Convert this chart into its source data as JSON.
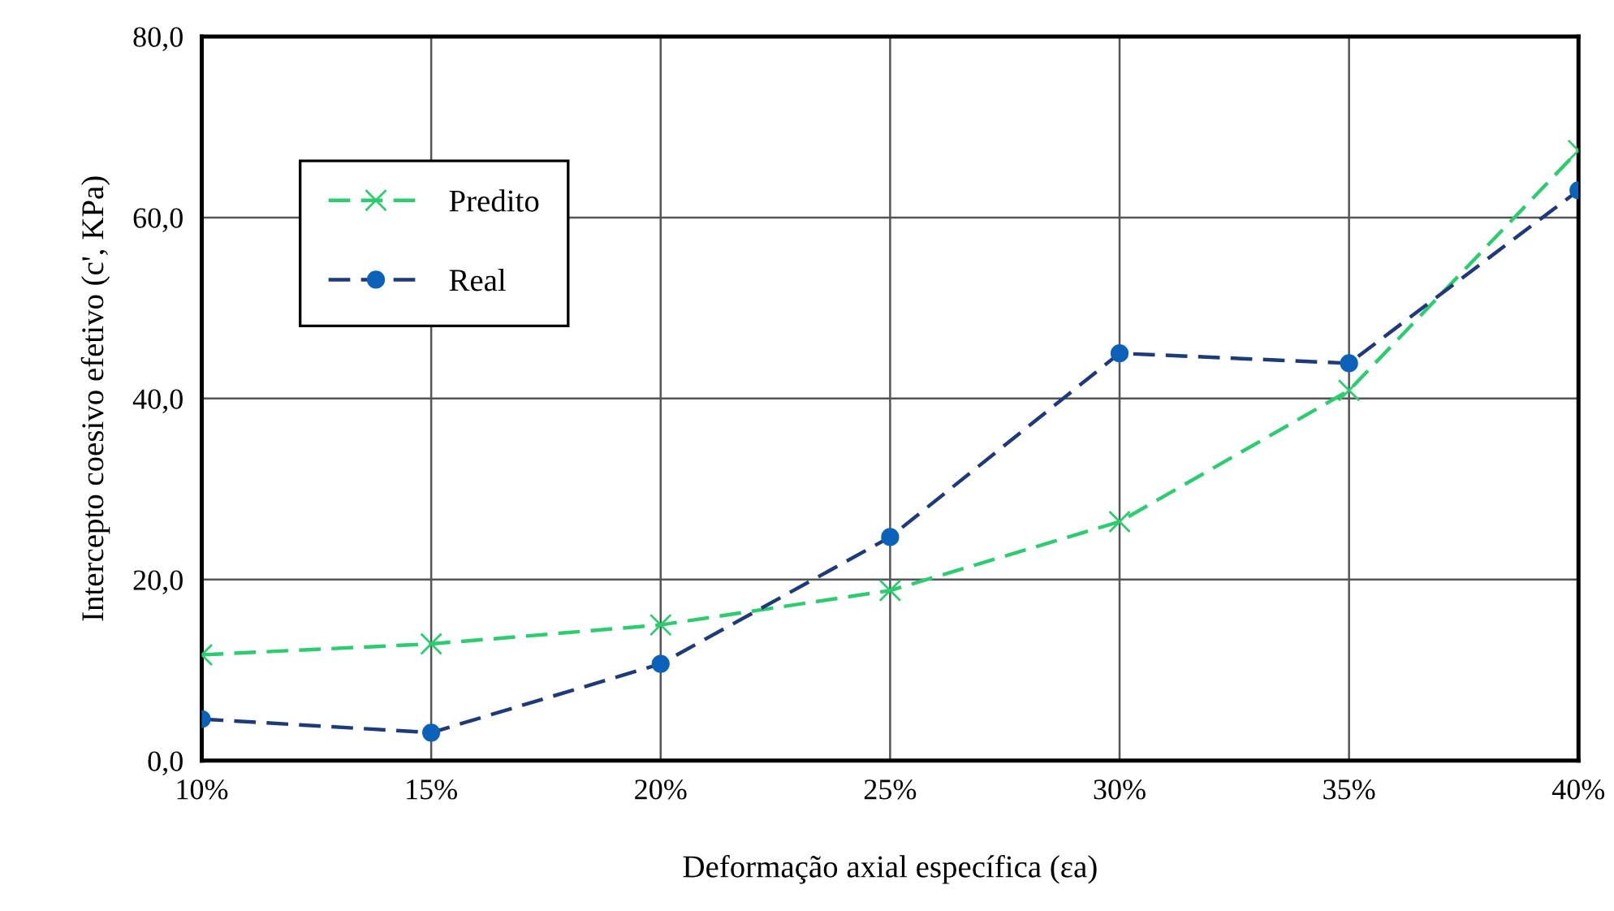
{
  "chart_data": {
    "type": "line",
    "categories": [
      "10%",
      "15%",
      "20%",
      "25%",
      "30%",
      "35%",
      "40%"
    ],
    "xlabel": "Deformação axial específica (εa)",
    "ylabel": "Intercepto coesivo efetivo (c', KPa)",
    "ylim": [
      0,
      80
    ],
    "yticks": [
      {
        "value": 0,
        "label": "0,0"
      },
      {
        "value": 20,
        "label": "20,0"
      },
      {
        "value": 40,
        "label": "40,0"
      },
      {
        "value": 60,
        "label": "60,0"
      },
      {
        "value": 80,
        "label": "80,0"
      }
    ],
    "grid": true,
    "legend": "top left",
    "line_style": "dashed",
    "series": [
      {
        "name": "Predito",
        "color": "#2ecc71",
        "marker": "cross",
        "values": [
          11.7,
          12.9,
          15.0,
          18.8,
          26.4,
          40.9,
          67.4
        ]
      },
      {
        "name": "Real",
        "color": "#1f3a7a",
        "marker": "circle",
        "values": [
          4.6,
          3.1,
          10.7,
          24.7,
          45.0,
          43.9,
          63.0
        ]
      }
    ]
  }
}
